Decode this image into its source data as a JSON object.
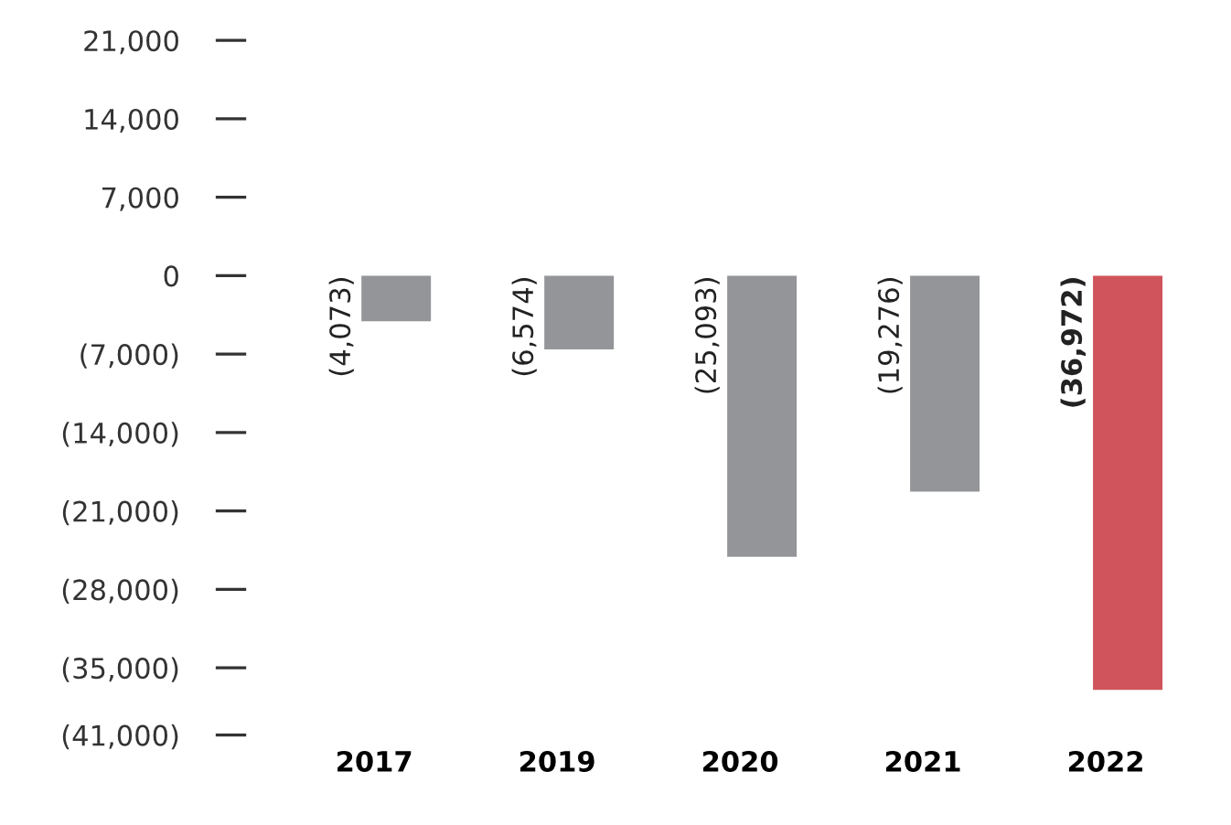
{
  "chart_data": {
    "type": "bar",
    "categories": [
      "2017",
      "2019",
      "2020",
      "2021",
      "2022"
    ],
    "values": [
      -4073,
      -6574,
      -25093,
      -19276,
      -36972
    ],
    "colors": [
      "#939598",
      "#939598",
      "#939598",
      "#939598",
      "#d0545b"
    ],
    "value_labels": [
      "(4,073)",
      "(6,574)",
      "(25,093)",
      "(19,276)",
      "(36,972)"
    ],
    "ylim": [
      -41000,
      21000
    ],
    "yticks": [
      {
        "value": 21000,
        "label": "21,000"
      },
      {
        "value": 14000,
        "label": "14,000"
      },
      {
        "value": 7000,
        "label": "7,000"
      },
      0,
      {
        "value": -7000,
        "label": "(7,000)"
      },
      {
        "value": -14000,
        "label": "(14,000)"
      },
      {
        "value": -21000,
        "label": "(21,000)"
      },
      {
        "value": -28000,
        "label": "(28,000)"
      },
      {
        "value": -35000,
        "label": "(35,000)"
      },
      {
        "value": -41000,
        "label": "(41,000)"
      }
    ],
    "grid": false
  }
}
